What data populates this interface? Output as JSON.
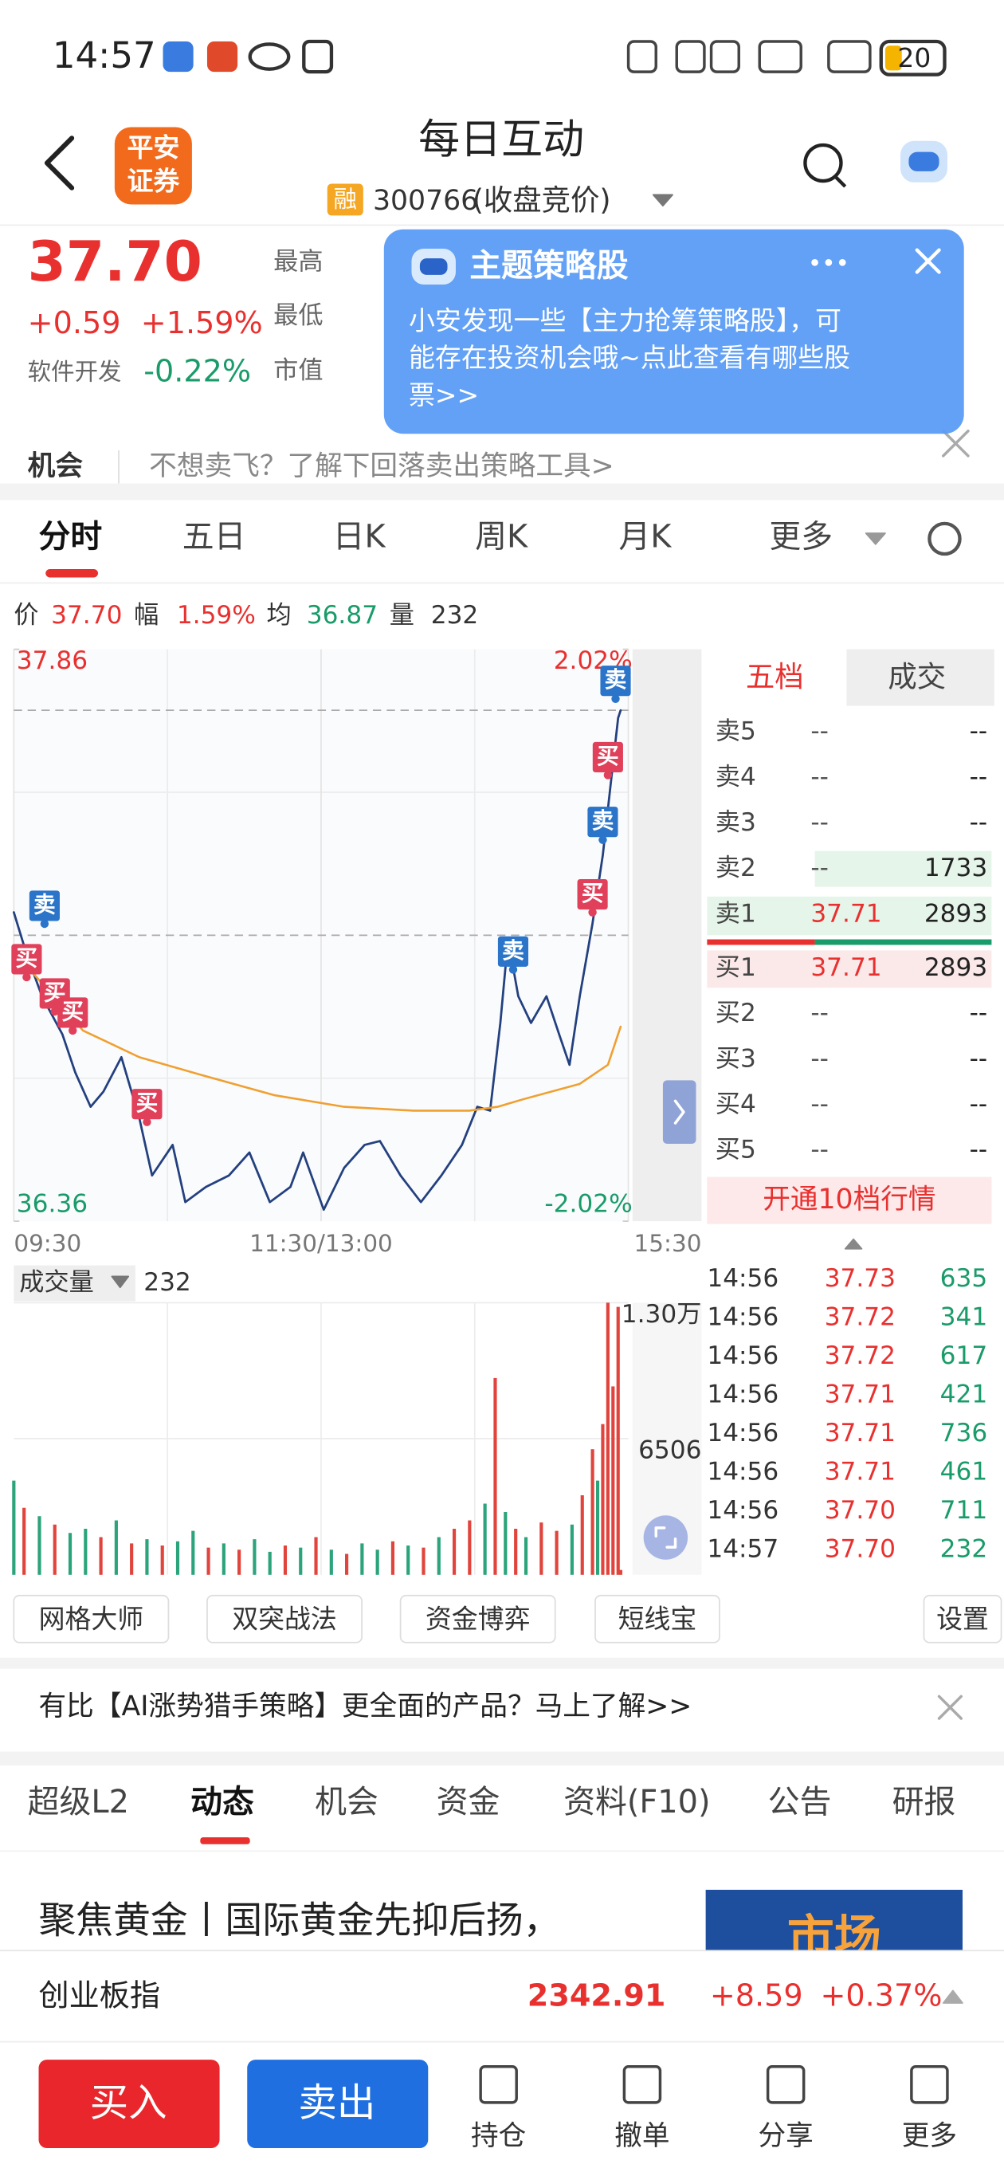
{
  "status_bar": {
    "time": "14:57",
    "battery": "20"
  },
  "header": {
    "logo": [
      "平安",
      "证券"
    ],
    "title": "每日互动",
    "tag": "融",
    "code": "300766",
    "status": "(收盘竞价)"
  },
  "quote": {
    "price": "37.70",
    "change": "+0.59",
    "change_pct": "+1.59%",
    "sector": "软件开发",
    "sector_change": "-0.22%",
    "labels": [
      "最高",
      "最低",
      "市值"
    ]
  },
  "notice": {
    "label": "机会",
    "text": "不想卖飞？了解下回落卖出策略工具>"
  },
  "popup": {
    "title": "主题策略股",
    "lines": [
      "小安发现一些【主力抢筹策略股】，可",
      "能存在投资机会哦~点此查看有哪些股",
      "票>>"
    ]
  },
  "chart_tabs": [
    "分时",
    "五日",
    "日K",
    "周K",
    "月K",
    "更多"
  ],
  "info_line": [
    "价",
    "37.70",
    "幅",
    "1.59%",
    "均",
    "36.87",
    "量",
    "232"
  ],
  "chart_data": [
    {
      "type": "line",
      "xlim": [
        0,
        240
      ],
      "xticks": [
        {
          "value": 0,
          "label": "09:30"
        },
        {
          "value": 120,
          "label": "11:30/13:00"
        },
        {
          "value": 240,
          "label": "15:30"
        }
      ],
      "ylim": [
        36.36,
        37.86
      ],
      "yticks": [
        36.36,
        37.86
      ],
      "y2lim": [
        -2.02,
        2.02
      ],
      "y2ticks": [
        {
          "value": -2.02,
          "label": "-2.02%"
        },
        {
          "value": 2.02,
          "label": "2.02%"
        }
      ],
      "prev_close": 37.11,
      "price_line": 37.7,
      "series": [
        {
          "color": "#23407f",
          "x": [
            0,
            5,
            11,
            19,
            24,
            30,
            35,
            42,
            49,
            54,
            62,
            67,
            75,
            84,
            92,
            100,
            108,
            113,
            121,
            129,
            137,
            143,
            151,
            159,
            167,
            175,
            181,
            186,
            190,
            193,
            197,
            202,
            208,
            213,
            217,
            221,
            226,
            230,
            233,
            236,
            237
          ],
          "values": [
            37.17,
            37.06,
            36.95,
            36.85,
            36.75,
            36.66,
            36.7,
            36.79,
            36.63,
            36.48,
            36.56,
            36.41,
            36.45,
            36.48,
            36.54,
            36.41,
            36.45,
            36.54,
            36.39,
            36.5,
            36.56,
            36.57,
            36.48,
            36.41,
            36.48,
            36.56,
            36.66,
            36.65,
            36.88,
            37.1,
            36.95,
            36.88,
            36.95,
            36.85,
            36.77,
            36.95,
            37.14,
            37.32,
            37.5,
            37.68,
            37.7
          ]
        },
        {
          "color": "#f0a030",
          "x": [
            5,
            27,
            49,
            75,
            102,
            129,
            156,
            178,
            189,
            199,
            221,
            232,
            237
          ],
          "values": [
            37.03,
            36.86,
            36.79,
            36.74,
            36.69,
            36.66,
            36.65,
            36.65,
            36.66,
            36.68,
            36.72,
            36.77,
            36.87
          ]
        }
      ],
      "markers": [
        {
          "text": "卖",
          "x": 12,
          "price": 37.14,
          "color": "#2a74c9"
        },
        {
          "text": "买",
          "x": 5,
          "price": 37.0,
          "color": "#e0405a"
        },
        {
          "text": "买",
          "x": 16,
          "price": 36.91,
          "color": "#e0405a"
        },
        {
          "text": "买",
          "x": 23,
          "price": 36.86,
          "color": "#e0405a"
        },
        {
          "text": "买",
          "x": 52,
          "price": 36.62,
          "color": "#e0405a"
        },
        {
          "text": "卖",
          "x": 195,
          "price": 37.02,
          "color": "#2a74c9"
        },
        {
          "text": "买",
          "x": 226,
          "price": 37.17,
          "color": "#e0405a"
        },
        {
          "text": "卖",
          "x": 230,
          "price": 37.36,
          "color": "#2a74c9"
        },
        {
          "text": "买",
          "x": 232,
          "price": 37.53,
          "color": "#e0405a"
        },
        {
          "text": "卖",
          "x": 235,
          "price": 37.73,
          "color": "#2a74c9"
        }
      ]
    },
    {
      "type": "bar",
      "selector": "成交量",
      "current": "232",
      "xlim": [
        0,
        240
      ],
      "ylim": [
        0,
        13000
      ],
      "yticks": [
        6506,
        {
          "value": 13000,
          "label": "1.30万"
        }
      ],
      "x": [
        0,
        4,
        10,
        16,
        22,
        28,
        34,
        40,
        46,
        52,
        58,
        64,
        70,
        76,
        82,
        88,
        94,
        100,
        106,
        112,
        118,
        124,
        130,
        136,
        142,
        148,
        154,
        160,
        166,
        172,
        178,
        184,
        188,
        192,
        196,
        200,
        206,
        212,
        218,
        222,
        226,
        228,
        230,
        232,
        234,
        236,
        237
      ],
      "values": [
        4500,
        3200,
        2800,
        2400,
        2000,
        2200,
        1800,
        2600,
        1500,
        1700,
        1400,
        1600,
        2100,
        1300,
        1500,
        1200,
        1700,
        1100,
        1400,
        1300,
        1800,
        1200,
        1000,
        1500,
        1200,
        1600,
        1400,
        1300,
        1800,
        2200,
        2600,
        3400,
        9400,
        3000,
        2200,
        1800,
        2500,
        2100,
        2400,
        3800,
        6000,
        4500,
        7200,
        13000,
        9000,
        12800,
        232
      ],
      "colors": [
        "#2ba37b",
        "#e0443c",
        "#2ba37b",
        "#e0443c",
        "#2ba37b",
        "#2ba37b",
        "#e0443c",
        "#2ba37b",
        "#e0443c",
        "#2ba37b",
        "#e0443c",
        "#2ba37b",
        "#2ba37b",
        "#e0443c",
        "#2ba37b",
        "#e0443c",
        "#2ba37b",
        "#2ba37b",
        "#e0443c",
        "#2ba37b",
        "#e0443c",
        "#2ba37b",
        "#e0443c",
        "#2ba37b",
        "#2ba37b",
        "#e0443c",
        "#2ba37b",
        "#e0443c",
        "#2ba37b",
        "#e0443c",
        "#e0443c",
        "#2ba37b",
        "#e0443c",
        "#2ba37b",
        "#e0443c",
        "#2ba37b",
        "#e0443c",
        "#e0443c",
        "#2ba37b",
        "#e0443c",
        "#e0443c",
        "#2ba37b",
        "#e0443c",
        "#e0443c",
        "#e0443c",
        "#e0443c",
        "#e0443c"
      ]
    }
  ],
  "order_book": {
    "tabs": [
      "五档",
      "成交"
    ],
    "asks": [
      [
        "卖5",
        "--",
        "--"
      ],
      [
        "卖4",
        "--",
        "--"
      ],
      [
        "卖3",
        "--",
        "--"
      ],
      [
        "卖2",
        "--",
        "1733"
      ],
      [
        "卖1",
        "37.71",
        "2893"
      ]
    ],
    "bids": [
      [
        "买1",
        "37.71",
        "2893"
      ],
      [
        "买2",
        "--",
        "--"
      ],
      [
        "买3",
        "--",
        "--"
      ],
      [
        "买4",
        "--",
        "--"
      ],
      [
        "买5",
        "--",
        "--"
      ]
    ],
    "upgrade": "开通10档行情"
  },
  "trades": [
    [
      "14:56",
      "37.73",
      "635"
    ],
    [
      "14:56",
      "37.72",
      "341"
    ],
    [
      "14:56",
      "37.72",
      "617"
    ],
    [
      "14:56",
      "37.71",
      "421"
    ],
    [
      "14:56",
      "37.71",
      "736"
    ],
    [
      "14:56",
      "37.71",
      "461"
    ],
    [
      "14:56",
      "37.70",
      "711"
    ],
    [
      "14:57",
      "37.70",
      "232"
    ]
  ],
  "tools": [
    "网格大师",
    "双突战法",
    "资金博弈",
    "短线宝",
    "设置"
  ],
  "promo": "有比【AI涨势猎手策略】更全面的产品？马上了解>>",
  "tabs": [
    "超级L2",
    "动态",
    "机会",
    "资金",
    "资料(F10)",
    "公告",
    "研报"
  ],
  "news": {
    "headline": "聚焦黄金丨国际黄金先抑后扬，",
    "image_text": "市场"
  },
  "index_bar": {
    "name": "创业板指",
    "value": "2342.91",
    "change": "+8.59",
    "change_pct": "+0.37%"
  },
  "bottom_bar": [
    "买入",
    "卖出",
    "持仓",
    "撤单",
    "分享",
    "更多"
  ]
}
